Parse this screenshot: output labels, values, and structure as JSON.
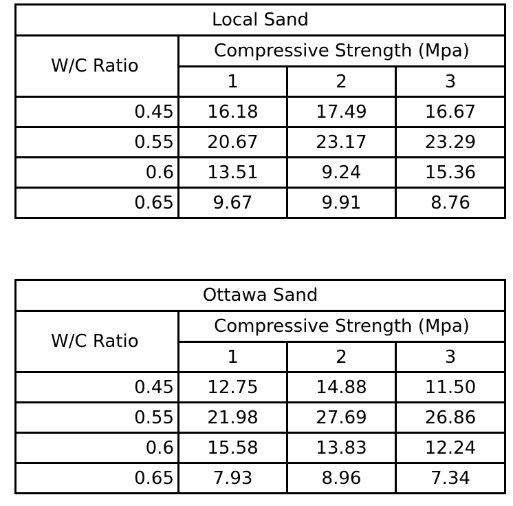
{
  "tables": [
    {
      "title": "Local Sand",
      "ratio_header": "W/C Ratio",
      "group_header": "Compressive Strength (Mpa)",
      "columns": [
        "1",
        "2",
        "3"
      ],
      "rows": [
        {
          "ratio": "0.45",
          "values": [
            "16.18",
            "17.49",
            "16.67"
          ]
        },
        {
          "ratio": "0.55",
          "values": [
            "20.67",
            "23.17",
            "23.29"
          ]
        },
        {
          "ratio": "0.6",
          "values": [
            "13.51",
            "9.24",
            "15.36"
          ]
        },
        {
          "ratio": "0.65",
          "values": [
            "9.67",
            "9.91",
            "8.76"
          ]
        }
      ]
    },
    {
      "title": "Ottawa Sand",
      "ratio_header": "W/C Ratio",
      "group_header": "Compressive Strength (Mpa)",
      "columns": [
        "1",
        "2",
        "3"
      ],
      "rows": [
        {
          "ratio": "0.45",
          "values": [
            "12.75",
            "14.88",
            "11.50"
          ]
        },
        {
          "ratio": "0.55",
          "values": [
            "21.98",
            "27.69",
            "26.86"
          ]
        },
        {
          "ratio": "0.6",
          "values": [
            "15.58",
            "13.83",
            "12.24"
          ]
        },
        {
          "ratio": "0.65",
          "values": [
            "7.93",
            "8.96",
            "7.34"
          ]
        }
      ]
    }
  ]
}
